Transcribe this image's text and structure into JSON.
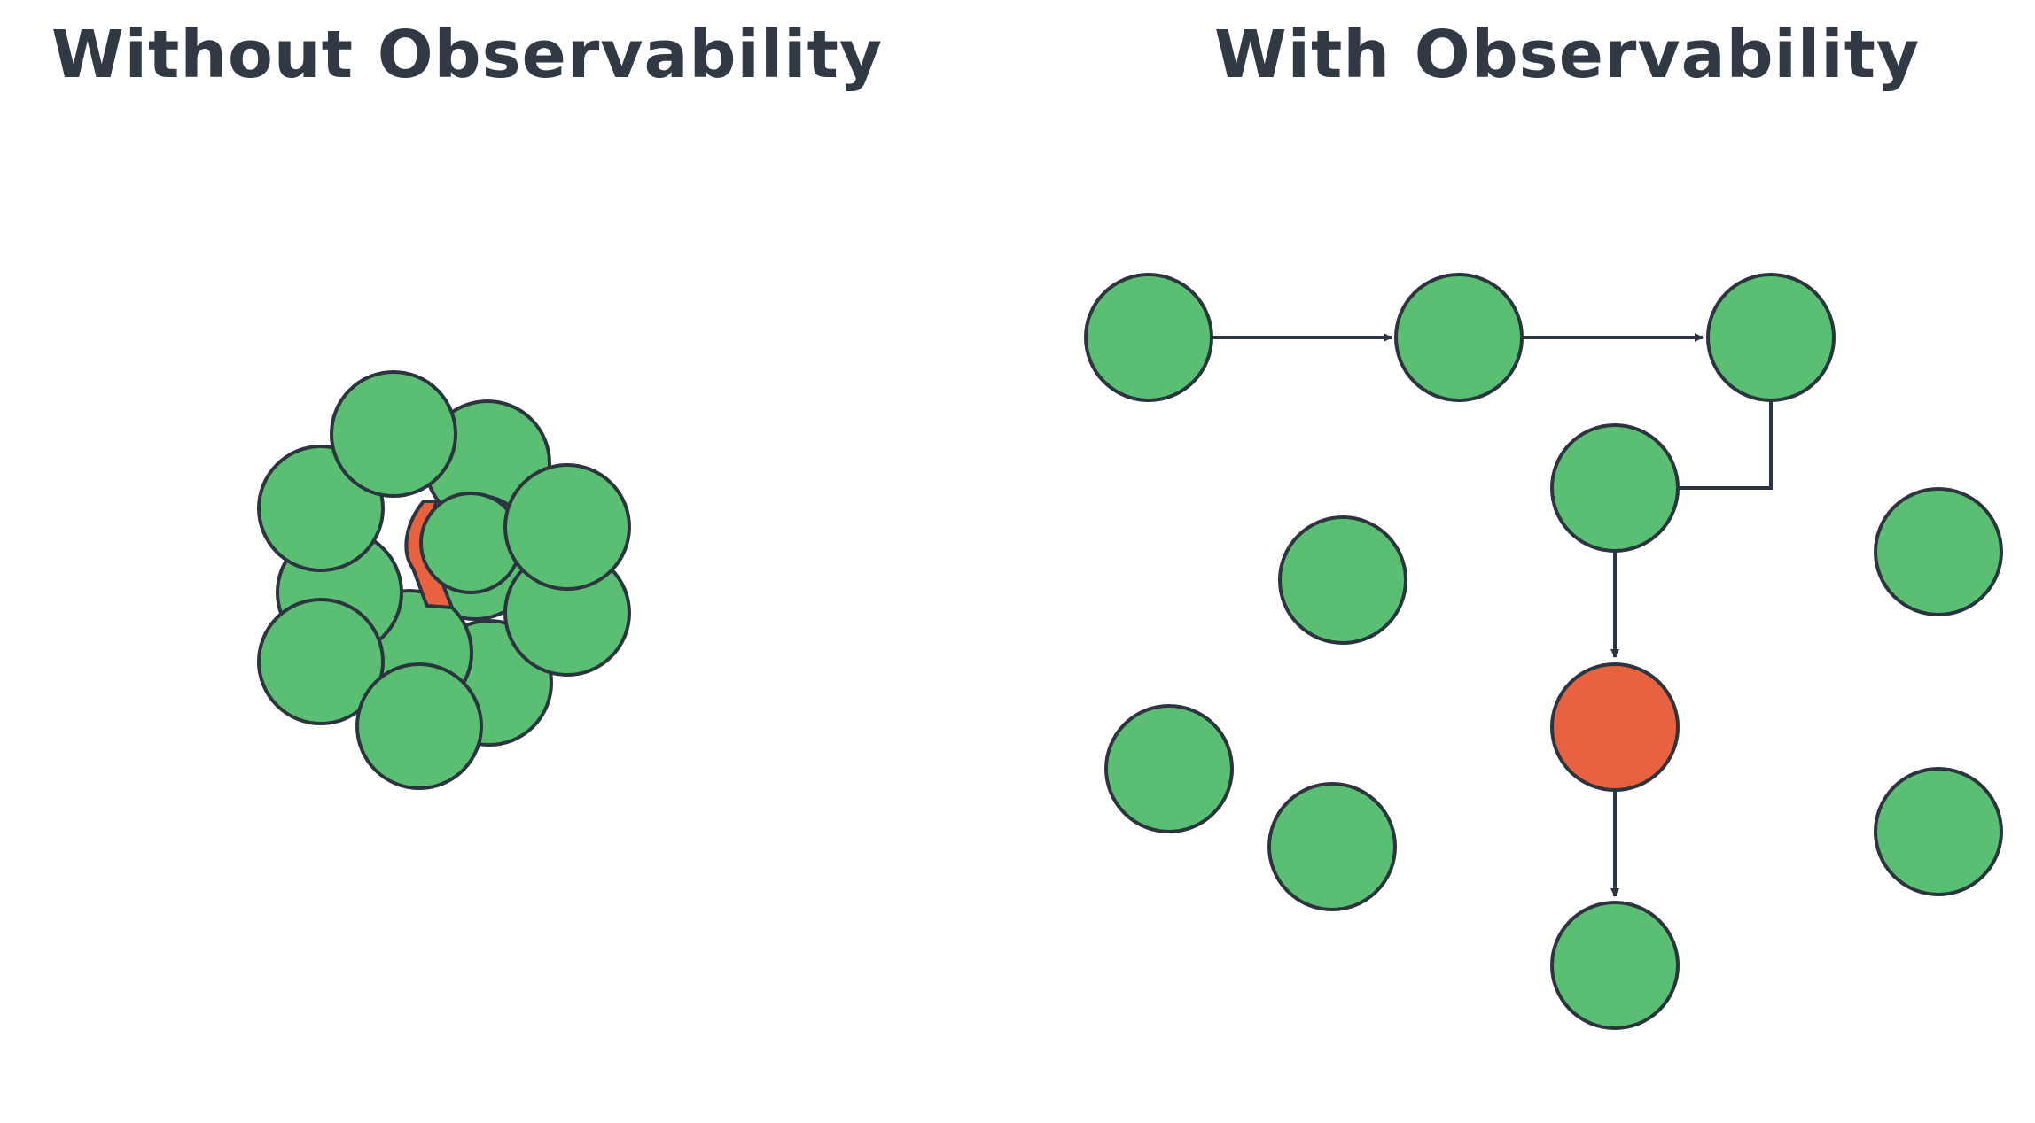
{
  "panels": {
    "left": {
      "title": "Without Observability"
    },
    "right": {
      "title": "With Observability"
    }
  },
  "colors": {
    "node_healthy": "#5bbf73",
    "node_failing": "#e8623f",
    "outline": "#2c3440",
    "title": "#313a44",
    "background": "#ffffff"
  },
  "left_cluster": {
    "healthy_nodes": 11,
    "failing_nodes": 1,
    "failing_node_visibility": "mostly hidden"
  },
  "right_graph": {
    "nodes": [
      {
        "id": "n1",
        "status": "healthy"
      },
      {
        "id": "n2",
        "status": "healthy"
      },
      {
        "id": "n3",
        "status": "healthy"
      },
      {
        "id": "n4",
        "status": "healthy"
      },
      {
        "id": "n5",
        "status": "failing"
      },
      {
        "id": "n6",
        "status": "healthy"
      },
      {
        "id": "n7",
        "status": "healthy"
      },
      {
        "id": "n8",
        "status": "healthy"
      },
      {
        "id": "n9",
        "status": "healthy"
      },
      {
        "id": "n10",
        "status": "healthy"
      },
      {
        "id": "n11",
        "status": "healthy"
      }
    ],
    "edges": [
      {
        "from": "n1",
        "to": "n2"
      },
      {
        "from": "n2",
        "to": "n3"
      },
      {
        "from": "n3",
        "to": "n4"
      },
      {
        "from": "n4",
        "to": "n5"
      },
      {
        "from": "n5",
        "to": "n6"
      }
    ]
  }
}
